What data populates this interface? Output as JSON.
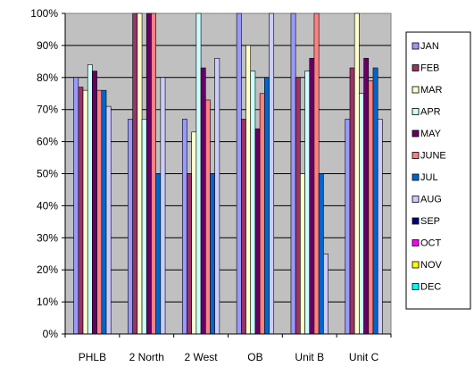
{
  "chart_data": {
    "type": "bar",
    "title": "",
    "xlabel": "",
    "ylabel": "",
    "ylim": [
      0,
      100
    ],
    "y_ticks": [
      "0%",
      "10%",
      "20%",
      "30%",
      "40%",
      "50%",
      "60%",
      "70%",
      "80%",
      "90%",
      "100%"
    ],
    "grid": true,
    "legend_position": "right",
    "plot_background": "#c0c0c0",
    "categories": [
      "PHLB",
      "2 North",
      "2 West",
      "OB",
      "Unit B",
      "Unit C"
    ],
    "series": [
      {
        "name": "JAN",
        "color": "#9999ff",
        "values": [
          80,
          67,
          67,
          100,
          100,
          67
        ]
      },
      {
        "name": "FEB",
        "color": "#993366",
        "values": [
          77,
          100,
          50,
          67,
          80,
          83
        ]
      },
      {
        "name": "MAR",
        "color": "#ffffcc",
        "values": [
          76,
          100,
          63,
          90,
          50,
          100
        ]
      },
      {
        "name": "APR",
        "color": "#ccffff",
        "values": [
          84,
          67,
          100,
          82,
          82,
          75
        ]
      },
      {
        "name": "MAY",
        "color": "#660066",
        "values": [
          82,
          100,
          83,
          64,
          86,
          86
        ]
      },
      {
        "name": "JUNE",
        "color": "#ff8080",
        "values": [
          76,
          100,
          73,
          75,
          100,
          79
        ]
      },
      {
        "name": "JUL",
        "color": "#0066cc",
        "values": [
          76,
          50,
          50,
          80,
          50,
          83
        ]
      },
      {
        "name": "AUG",
        "color": "#ccccff",
        "values": [
          71,
          80,
          86,
          100,
          25,
          67
        ]
      }
    ],
    "legend_entries": [
      {
        "name": "JAN",
        "color": "#9999ff"
      },
      {
        "name": "FEB",
        "color": "#993366"
      },
      {
        "name": "MAR",
        "color": "#ffffcc"
      },
      {
        "name": "APR",
        "color": "#ccffff"
      },
      {
        "name": "MAY",
        "color": "#660066"
      },
      {
        "name": "JUNE",
        "color": "#ff8080"
      },
      {
        "name": "JUL",
        "color": "#0066cc"
      },
      {
        "name": "AUG",
        "color": "#ccccff"
      },
      {
        "name": "SEP",
        "color": "#000080"
      },
      {
        "name": "OCT",
        "color": "#ff00ff"
      },
      {
        "name": "NOV",
        "color": "#ffff00"
      },
      {
        "name": "DEC",
        "color": "#00ffff"
      }
    ]
  }
}
